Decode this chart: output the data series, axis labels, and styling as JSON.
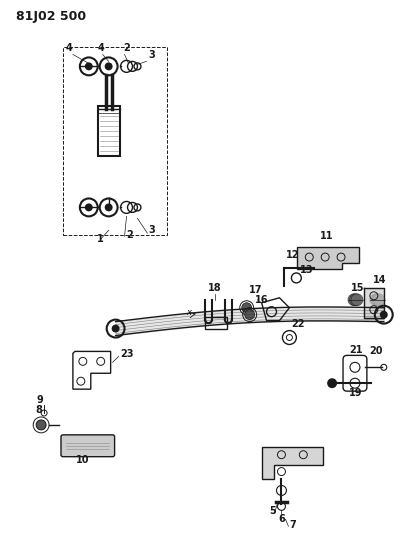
{
  "title": "81J02 500",
  "background_color": "#ffffff",
  "text_color": "#1a1a1a",
  "fig_width": 4.07,
  "fig_height": 5.33,
  "dpi": 100
}
